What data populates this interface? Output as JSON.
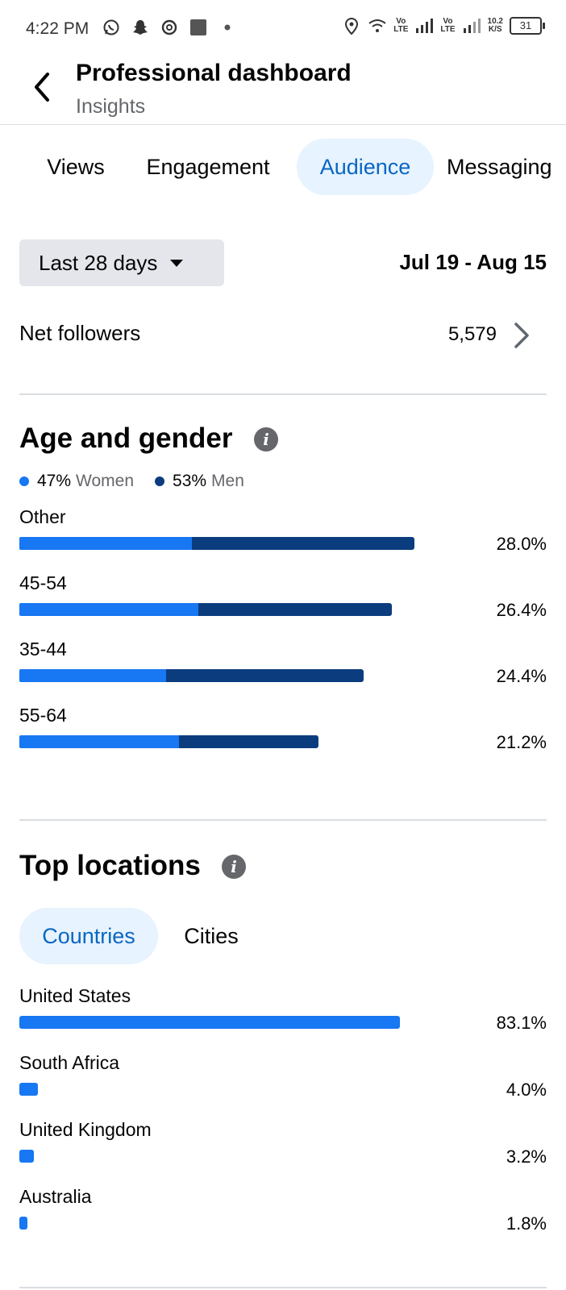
{
  "status_bar": {
    "time": "4:22 PM",
    "net_speed_top": "10.2",
    "net_speed_unit": "K/S",
    "battery": "31",
    "icons": [
      "whatsapp-icon",
      "snapchat-icon",
      "threads-icon",
      "app-square-icon",
      "dot-icon",
      "location-icon",
      "wifi-icon",
      "volte-icon",
      "signal-icon",
      "volte-icon",
      "signal-icon"
    ]
  },
  "header": {
    "title": "Professional dashboard",
    "subtitle": "Insights"
  },
  "tabs": [
    {
      "label": "Views",
      "active": false
    },
    {
      "label": "Engagement",
      "active": false
    },
    {
      "label": "Audience",
      "active": true
    },
    {
      "label": "Messaging",
      "active": false
    }
  ],
  "filters": {
    "range_label": "Last 28 days",
    "date_range": "Jul 19 - Aug 15"
  },
  "net_followers": {
    "label": "Net followers",
    "value": "5,579"
  },
  "age_gender": {
    "title": "Age and gender",
    "legend": [
      {
        "pct": "47%",
        "label": "Women",
        "color": "#1877f2"
      },
      {
        "pct": "53%",
        "label": "Men",
        "color": "#0b3d7e"
      }
    ],
    "rows": [
      {
        "label": "Other",
        "pct": "28.0%",
        "women": 12.2,
        "men": 15.8
      },
      {
        "label": "45-54",
        "pct": "26.4%",
        "women": 12.7,
        "men": 13.7
      },
      {
        "label": "35-44",
        "pct": "24.4%",
        "women": 10.4,
        "men": 14.0
      },
      {
        "label": "55-64",
        "pct": "21.2%",
        "women": 11.3,
        "men": 9.9
      }
    ]
  },
  "top_locations": {
    "title": "Top locations",
    "subtabs": [
      {
        "label": "Countries",
        "active": true
      },
      {
        "label": "Cities",
        "active": false
      }
    ],
    "rows": [
      {
        "label": "United States",
        "pct": "83.1%",
        "value": 83.1
      },
      {
        "label": "South Africa",
        "pct": "4.0%",
        "value": 4.0
      },
      {
        "label": "United Kingdom",
        "pct": "3.2%",
        "value": 3.2
      },
      {
        "label": "Australia",
        "pct": "1.8%",
        "value": 1.8
      }
    ]
  },
  "colors": {
    "women": "#1877f2",
    "men": "#0b3d7e",
    "accent": "#0a66c2",
    "active_tab_bg": "#e7f3ff"
  }
}
